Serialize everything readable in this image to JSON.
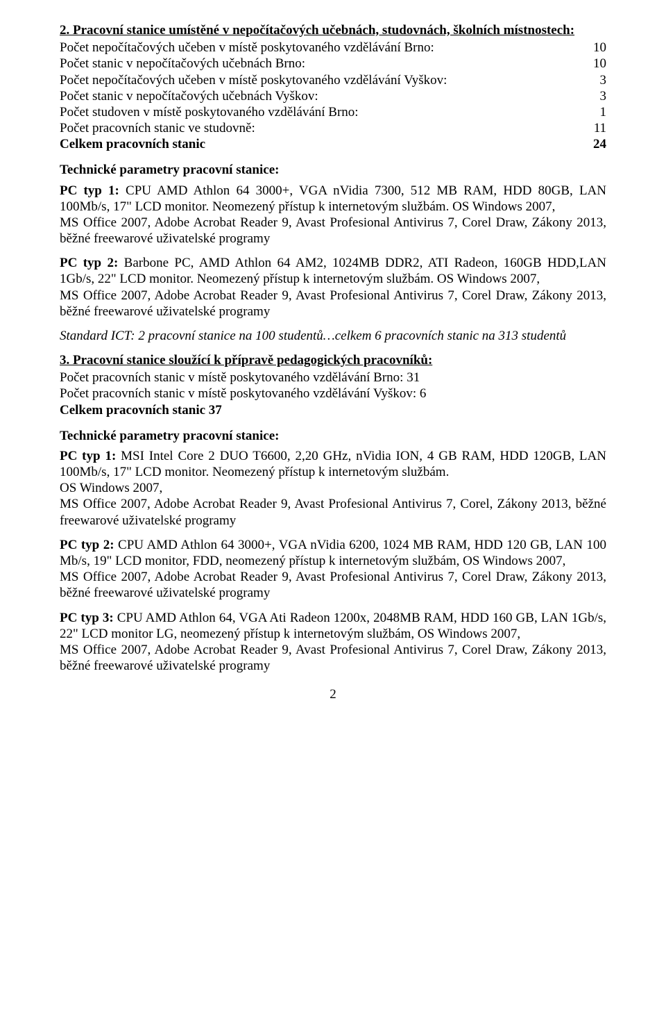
{
  "section2": {
    "heading": "2. Pracovní stanice umístěné v nepočítačových učebnách, studovnách, školních místnostech:",
    "rows": [
      {
        "label": "Počet nepočítačových učeben v místě poskytovaného vzdělávání Brno:",
        "value": "10"
      },
      {
        "label": "Počet stanic v nepočítačových učebnách Brno:",
        "value": "10"
      },
      {
        "label": "Počet nepočítačových učeben v místě poskytovaného vzdělávání Vyškov:",
        "value": "3"
      },
      {
        "label": "Počet stanic v nepočítačových učebnách Vyškov:",
        "value": "3"
      },
      {
        "label": "Počet studoven v místě poskytovaného vzdělávání Brno:",
        "value": "1"
      },
      {
        "label": "Počet pracovních stanic ve studovně:",
        "value": "11"
      }
    ],
    "total": {
      "label": "Celkem pracovních stanic",
      "value": "24"
    }
  },
  "tech_params_label": "Technické parametry pracovní stanice:",
  "section2_pcs": {
    "pc1": {
      "lead": "PC typ 1: ",
      "text": "CPU AMD Athlon 64 3000+, VGA nVidia 7300, 512 MB RAM, HDD 80GB, LAN 100Mb/s, 17\" LCD monitor. Neomezený přístup k internetovým službám. OS Windows 2007,",
      "line2": "MS Office 2007, Adobe Acrobat Reader 9, Avast Profesional Antivirus 7, Corel Draw, Zákony 2013, běžné freewarové uživatelské programy"
    },
    "pc2": {
      "lead": "PC typ 2: ",
      "text": "Barbone PC, AMD Athlon 64 AM2, 1024MB DDR2, ATI Radeon, 160GB HDD,LAN 1Gb/s, 22\" LCD monitor. Neomezený přístup k internetovým službám. OS Windows 2007,",
      "line2": "MS Office 2007, Adobe Acrobat Reader 9, Avast Profesional Antivirus 7, Corel Draw, Zákony 2013, běžné freewarové uživatelské programy"
    }
  },
  "standard_ict": "Standard ICT: 2 pracovní stanice na 100 studentů…celkem 6 pracovních stanic na 313 studentů",
  "section3": {
    "heading": "3. Pracovní stanice sloužící k přípravě pedagogických pracovníků:",
    "rows": [
      {
        "text": "Počet pracovních stanic v místě poskytovaného vzdělávání Brno:     31"
      },
      {
        "text": "Počet pracovních stanic v místě poskytovaného vzdělávání Vyškov:   6"
      }
    ],
    "total": "Celkem pracovních stanic                                                          37"
  },
  "section3_pcs": {
    "pc1": {
      "lead": "PC typ 1: ",
      "text": "MSI Intel Core 2 DUO T6600, 2,20 GHz, nVidia ION, 4 GB RAM, HDD 120GB, LAN 100Mb/s, 17\" LCD monitor. Neomezený přístup k internetovým službám.",
      "line2": "OS Windows 2007,",
      "line3": "MS Office 2007, Adobe Acrobat Reader 9, Avast Profesional Antivirus 7, Corel, Zákony 2013, běžné freewarové uživatelské programy"
    },
    "pc2": {
      "lead": "PC typ 2: ",
      "text": "CPU AMD Athlon 64 3000+, VGA nVidia 6200, 1024 MB RAM, HDD 120 GB, LAN 100 Mb/s, 19\" LCD monitor, FDD, neomezený přístup k internetovým službám, OS Windows 2007,",
      "line2": "MS Office 2007, Adobe Acrobat Reader 9, Avast Profesional Antivirus 7, Corel Draw, Zákony 2013, běžné freewarové uživatelské programy"
    },
    "pc3": {
      "lead": "PC typ 3: ",
      "text": "CPU AMD Athlon 64, VGA Ati Radeon 1200x, 2048MB RAM, HDD 160 GB, LAN 1Gb/s, 22\" LCD monitor LG, neomezený přístup k internetovým službám, OS Windows 2007,",
      "line2": "MS Office 2007, Adobe Acrobat Reader 9, Avast Profesional Antivirus 7, Corel Draw, Zákony 2013, běžné freewarové uživatelské programy"
    }
  },
  "page_number": "2"
}
